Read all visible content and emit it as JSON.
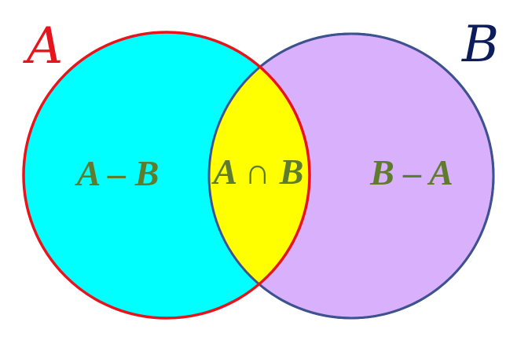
{
  "colors": {
    "background": "#ffffff",
    "a_fill": "#00ffff",
    "b_fill": "#d9b0fb",
    "intersection_fill": "#ffff00",
    "a_outline": "#e8141c",
    "b_outline": "#3f5290",
    "a_label": "#e8141c",
    "b_label": "#0d1c5a",
    "region_text": "#5f7c2e"
  },
  "sets": {
    "a": {
      "name": "A"
    },
    "b": {
      "name": "B"
    }
  },
  "regions": {
    "a_minus_b": {
      "label": "A – B"
    },
    "intersection": {
      "label": "A ∩ B"
    },
    "b_minus_a": {
      "label": "B – A"
    }
  }
}
